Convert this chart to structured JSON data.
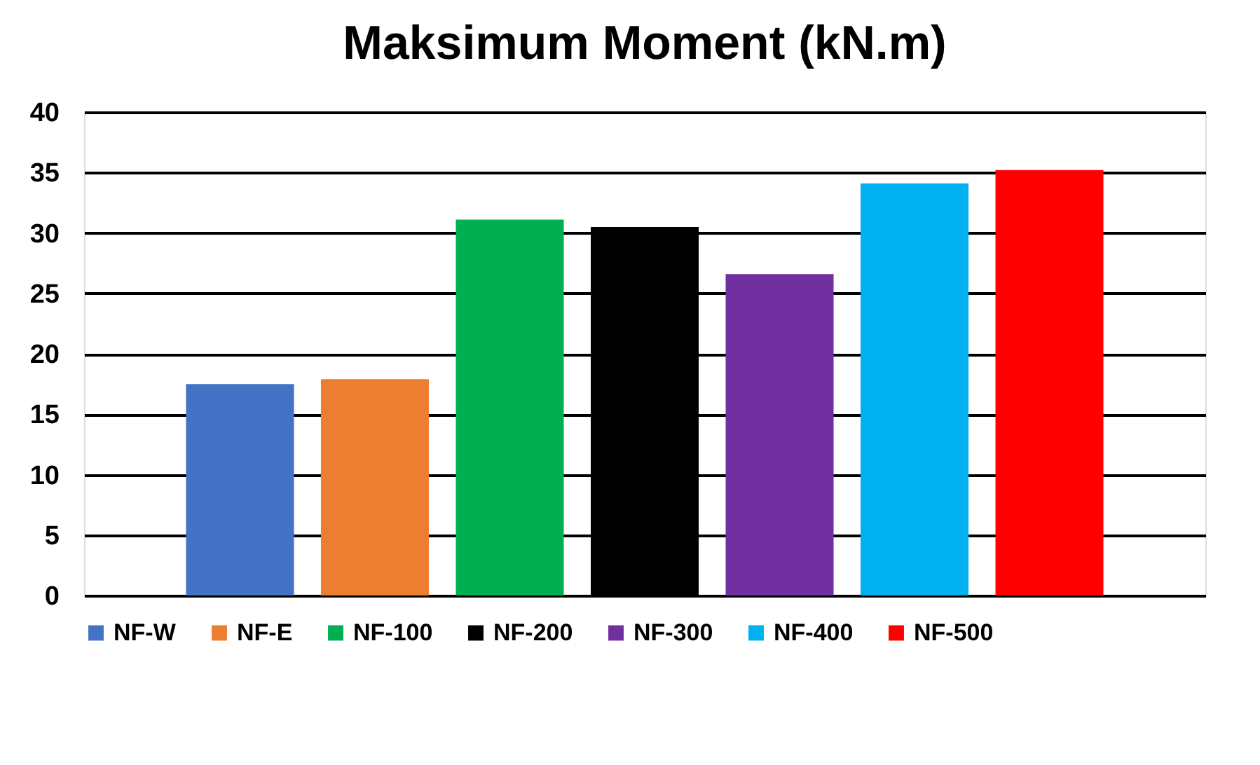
{
  "chart_data": {
    "type": "bar",
    "title": "Maksimum Moment (kN.m)",
    "categories": [
      null
    ],
    "series": [
      {
        "name": "NF-W",
        "color": "#4472c4",
        "values": [
          17.5
        ]
      },
      {
        "name": "NF-E",
        "color": "#ed7d31",
        "values": [
          17.9
        ]
      },
      {
        "name": "NF-100",
        "color": "#00b050",
        "values": [
          31.1
        ]
      },
      {
        "name": "NF-200",
        "color": "#000000",
        "values": [
          30.5
        ]
      },
      {
        "name": "NF-300",
        "color": "#7030a0",
        "values": [
          26.6
        ]
      },
      {
        "name": "NF-400",
        "color": "#00b0f0",
        "values": [
          34.1
        ]
      },
      {
        "name": "NF-500",
        "color": "#ff0000",
        "values": [
          35.2
        ]
      }
    ],
    "ylim": [
      0,
      40
    ],
    "yticks": [
      0,
      5,
      10,
      15,
      20,
      25,
      30,
      35,
      40
    ],
    "grid": "y",
    "legend": "bottom",
    "tick_labels": "y"
  }
}
